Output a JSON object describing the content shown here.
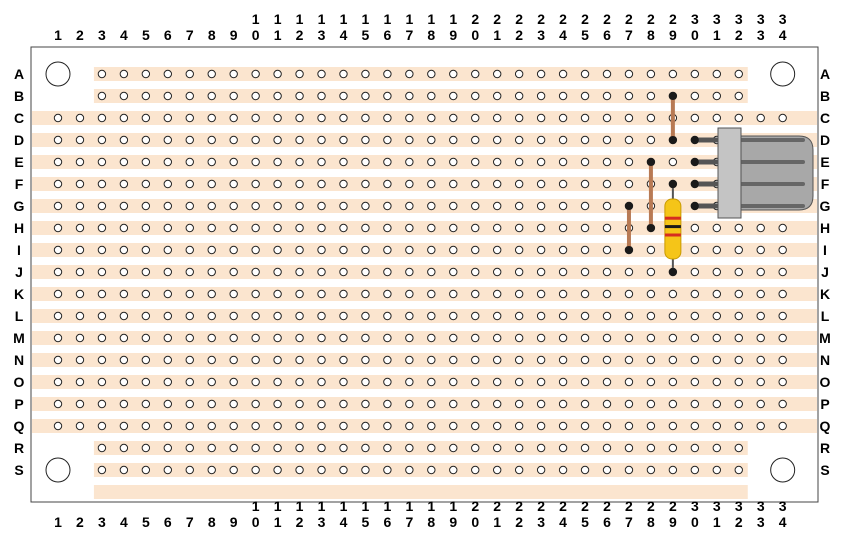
{
  "board": {
    "columns": [
      "1",
      "2",
      "3",
      "4",
      "5",
      "6",
      "7",
      "8",
      "9",
      "10",
      "11",
      "12",
      "13",
      "14",
      "15",
      "16",
      "17",
      "18",
      "19",
      "20",
      "21",
      "22",
      "23",
      "24",
      "25",
      "26",
      "27",
      "28",
      "29",
      "30",
      "31",
      "32",
      "33",
      "34"
    ],
    "rows": [
      "A",
      "B",
      "C",
      "D",
      "E",
      "F",
      "G",
      "H",
      "I",
      "J",
      "K",
      "L",
      "M",
      "N",
      "O",
      "P",
      "Q",
      "R",
      "S"
    ],
    "colors": {
      "board": "#ffffff",
      "strip": "#fbe5cf",
      "hole_stroke": "#222222",
      "wire": "#b87a54",
      "resistor_body": "#f5c518",
      "connector": "#a8a8a8"
    }
  },
  "components": {
    "wires": [
      {
        "from": "B29",
        "to": "D29"
      },
      {
        "from": "E28",
        "to": "H28"
      },
      {
        "from": "G27",
        "to": "I27"
      }
    ],
    "resistor": {
      "from": "F29",
      "to": "J29",
      "bands": [
        "#d62d20",
        "#1a1a1a",
        "#d62d20"
      ]
    },
    "connector": {
      "pins": [
        "D30",
        "E30",
        "F30",
        "G30"
      ]
    }
  }
}
